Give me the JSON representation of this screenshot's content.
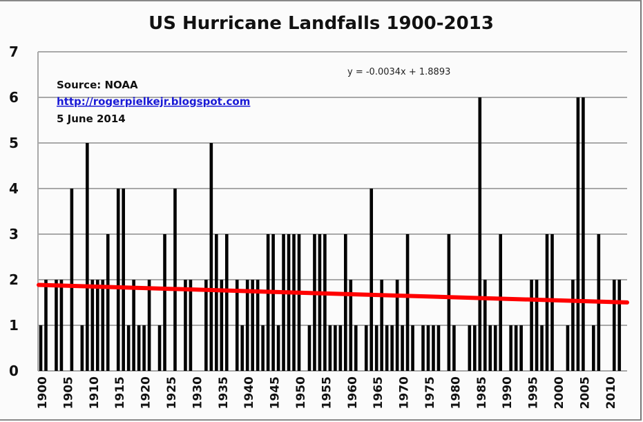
{
  "chart_data": {
    "type": "bar",
    "title": "US Hurricane Landfalls 1900-2013",
    "xlabel": "",
    "ylabel": "",
    "ylim": [
      0,
      7
    ],
    "yticks": [
      "0",
      "1",
      "2",
      "3",
      "4",
      "5",
      "6",
      "7"
    ],
    "xticks": [
      "1900",
      "1905",
      "1910",
      "1915",
      "1920",
      "1925",
      "1930",
      "1935",
      "1940",
      "1945",
      "1950",
      "1955",
      "1960",
      "1965",
      "1970",
      "1975",
      "1980",
      "1985",
      "1990",
      "1995",
      "2000",
      "2005",
      "2010"
    ],
    "grid": true,
    "x": [
      1900,
      1901,
      1902,
      1903,
      1904,
      1905,
      1906,
      1907,
      1908,
      1909,
      1910,
      1911,
      1912,
      1913,
      1914,
      1915,
      1916,
      1917,
      1918,
      1919,
      1920,
      1921,
      1922,
      1923,
      1924,
      1925,
      1926,
      1927,
      1928,
      1929,
      1930,
      1931,
      1932,
      1933,
      1934,
      1935,
      1936,
      1937,
      1938,
      1939,
      1940,
      1941,
      1942,
      1943,
      1944,
      1945,
      1946,
      1947,
      1948,
      1949,
      1950,
      1951,
      1952,
      1953,
      1954,
      1955,
      1956,
      1957,
      1958,
      1959,
      1960,
      1961,
      1962,
      1963,
      1964,
      1965,
      1966,
      1967,
      1968,
      1969,
      1970,
      1971,
      1972,
      1973,
      1974,
      1975,
      1976,
      1977,
      1978,
      1979,
      1980,
      1981,
      1982,
      1983,
      1984,
      1985,
      1986,
      1987,
      1988,
      1989,
      1990,
      1991,
      1992,
      1993,
      1994,
      1995,
      1996,
      1997,
      1998,
      1999,
      2000,
      2001,
      2002,
      2003,
      2004,
      2005,
      2006,
      2007,
      2008,
      2009,
      2010,
      2011,
      2012,
      2013
    ],
    "values": [
      1,
      2,
      0,
      2,
      2,
      0,
      4,
      0,
      1,
      5,
      2,
      2,
      2,
      3,
      0,
      4,
      4,
      1,
      2,
      1,
      1,
      2,
      0,
      1,
      3,
      0,
      4,
      0,
      2,
      2,
      0,
      0,
      2,
      5,
      3,
      2,
      3,
      0,
      2,
      1,
      2,
      2,
      2,
      1,
      3,
      3,
      1,
      3,
      3,
      3,
      3,
      0,
      1,
      3,
      3,
      3,
      1,
      1,
      1,
      3,
      2,
      1,
      0,
      1,
      4,
      1,
      2,
      1,
      1,
      2,
      1,
      3,
      1,
      0,
      1,
      1,
      1,
      1,
      0,
      3,
      1,
      0,
      0,
      1,
      1,
      6,
      2,
      1,
      1,
      3,
      0,
      1,
      1,
      1,
      0,
      2,
      2,
      1,
      3,
      3,
      0,
      0,
      1,
      2,
      6,
      6,
      0,
      1,
      3,
      0,
      0,
      2,
      2,
      0
    ],
    "bar_color": "#000000",
    "trendline": {
      "equation": "y = -0.0034x + 1.8893",
      "slope": -0.0034,
      "intercept": 1.8893,
      "color": "#ff0000"
    },
    "annotations": {
      "source": "Source: NOAA",
      "link": "http://rogerpielkejr.blogspot.com",
      "date": "5 June 2014"
    }
  }
}
